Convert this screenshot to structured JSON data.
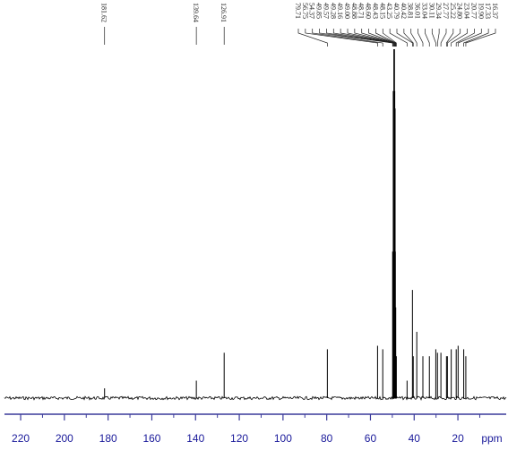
{
  "chart_data": {
    "type": "spectrum",
    "x_label": "ppm",
    "xlim": [
      227.4,
      -2.1
    ],
    "xticks": [
      220,
      200,
      180,
      160,
      140,
      120,
      100,
      80,
      60,
      40,
      20
    ],
    "xminorticks": [
      210,
      190,
      170,
      150,
      130,
      110,
      90,
      70,
      50,
      30,
      10
    ],
    "ylim": [
      0,
      100
    ],
    "color": "#000000",
    "axis_color": "#3a3a9a",
    "x": [
      181.62,
      139.64,
      126.91,
      79.71,
      56.75,
      54.37,
      49.85,
      49.57,
      49.28,
      49.16,
      49.0,
      48.88,
      48.71,
      48.6,
      48.43,
      48.15,
      43.25,
      40.79,
      40.42,
      38.81,
      36.01,
      33.04,
      30.11,
      29.34,
      27.77,
      25.22,
      24.8,
      23.04,
      20.77,
      19.9,
      17.33,
      16.37
    ],
    "peak_labels": [
      "181.62",
      "139.64",
      "126.91",
      "79.71",
      "56.75",
      "54.37",
      "49.85",
      "49.57",
      "49.28",
      "49.16",
      "49.00",
      "48.88",
      "48.71",
      "48.60",
      "48.43",
      "48.15",
      "43.25",
      "40.79",
      "40.42",
      "38.81",
      "36.01",
      "33.04",
      "30.11",
      "29.34",
      "27.77",
      "25.22",
      "24.80",
      "23.04",
      "20.77",
      "19.90",
      "17.33",
      "16.37"
    ],
    "values": [
      2.8,
      5,
      13,
      14,
      15,
      14,
      42,
      88,
      100,
      100,
      100,
      88,
      83,
      42,
      26,
      12,
      5,
      31,
      12,
      19,
      12,
      12,
      14,
      13,
      13,
      12,
      12,
      14,
      14,
      15,
      14,
      12
    ]
  }
}
